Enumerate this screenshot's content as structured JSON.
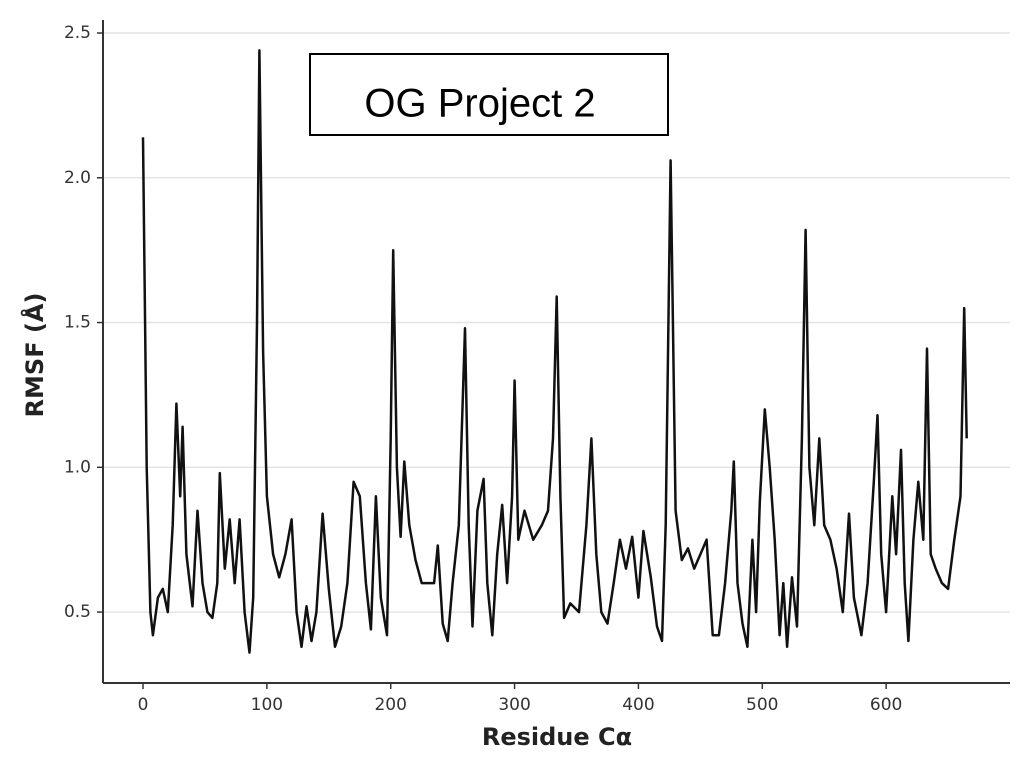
{
  "chart_data": {
    "type": "line",
    "annotation": "OG Project 2",
    "xlabel": "Residue Cα",
    "ylabel": "RMSF (Å)",
    "grid": true,
    "xlim": [
      -32.3,
      700
    ],
    "ylim": [
      0.255,
      2.545
    ],
    "xticks": [
      0,
      100,
      200,
      300,
      400,
      500,
      600
    ],
    "yticks": [
      0.5,
      {
        "value": 1,
        "label": "1.0"
      },
      1.5,
      {
        "value": 2,
        "label": "2.0"
      },
      2.5
    ],
    "series": [
      {
        "color": "#111111",
        "x": [
          0,
          3,
          6,
          8,
          12,
          16,
          20,
          24,
          27,
          30,
          32,
          35,
          40,
          44,
          48,
          52,
          56,
          60,
          62,
          66,
          70,
          74,
          78,
          82,
          86,
          89,
          92,
          94,
          97,
          100,
          105,
          110,
          115,
          120,
          124,
          128,
          132,
          136,
          140,
          145,
          150,
          155,
          160,
          165,
          170,
          175,
          180,
          184,
          188,
          192,
          197,
          200,
          202,
          205,
          208,
          211,
          215,
          220,
          225,
          230,
          235,
          238,
          242,
          246,
          250,
          255,
          260,
          263,
          266,
          270,
          275,
          278,
          282,
          286,
          290,
          294,
          298,
          300,
          303,
          308,
          315,
          322,
          327,
          331,
          334,
          337,
          340,
          345,
          352,
          358,
          362,
          366,
          370,
          375,
          380,
          385,
          390,
          395,
          400,
          404,
          410,
          415,
          419,
          422,
          426,
          430,
          435,
          440,
          445,
          450,
          455,
          460,
          465,
          470,
          475,
          477,
          480,
          484,
          488,
          492,
          495,
          498,
          502,
          506,
          510,
          514,
          517,
          520,
          524,
          528,
          532,
          535,
          538,
          542,
          546,
          550,
          555,
          560,
          565,
          570,
          574,
          580,
          585,
          590,
          593,
          596,
          600,
          605,
          608,
          612,
          615,
          618,
          622,
          626,
          630,
          633,
          636,
          640,
          645,
          650,
          655,
          660,
          663,
          665
        ],
        "values": [
          2.14,
          1.0,
          0.5,
          0.42,
          0.55,
          0.58,
          0.5,
          0.8,
          1.22,
          0.9,
          1.14,
          0.7,
          0.52,
          0.85,
          0.6,
          0.5,
          0.48,
          0.6,
          0.98,
          0.65,
          0.82,
          0.6,
          0.82,
          0.5,
          0.36,
          0.55,
          1.5,
          2.44,
          1.4,
          0.9,
          0.7,
          0.62,
          0.7,
          0.82,
          0.5,
          0.38,
          0.52,
          0.4,
          0.5,
          0.84,
          0.58,
          0.38,
          0.45,
          0.6,
          0.95,
          0.9,
          0.6,
          0.44,
          0.9,
          0.55,
          0.42,
          1.1,
          1.75,
          1.0,
          0.76,
          1.02,
          0.8,
          0.68,
          0.6,
          0.6,
          0.6,
          0.73,
          0.46,
          0.4,
          0.6,
          0.8,
          1.48,
          0.8,
          0.45,
          0.85,
          0.96,
          0.6,
          0.42,
          0.7,
          0.87,
          0.6,
          0.9,
          1.3,
          0.75,
          0.85,
          0.75,
          0.8,
          0.85,
          1.1,
          1.59,
          0.9,
          0.48,
          0.53,
          0.5,
          0.8,
          1.1,
          0.7,
          0.5,
          0.46,
          0.6,
          0.75,
          0.65,
          0.76,
          0.55,
          0.78,
          0.62,
          0.45,
          0.4,
          0.8,
          2.06,
          0.85,
          0.68,
          0.72,
          0.65,
          0.7,
          0.75,
          0.42,
          0.42,
          0.6,
          0.85,
          1.02,
          0.6,
          0.46,
          0.38,
          0.75,
          0.5,
          0.88,
          1.2,
          1.0,
          0.75,
          0.42,
          0.6,
          0.38,
          0.62,
          0.45,
          1.1,
          1.82,
          1.0,
          0.8,
          1.1,
          0.8,
          0.75,
          0.65,
          0.5,
          0.84,
          0.55,
          0.42,
          0.6,
          0.95,
          1.18,
          0.7,
          0.5,
          0.9,
          0.7,
          1.06,
          0.6,
          0.4,
          0.75,
          0.95,
          0.75,
          1.41,
          0.7,
          0.65,
          0.6,
          0.58,
          0.75,
          0.9,
          1.55,
          1.1
        ]
      }
    ]
  }
}
